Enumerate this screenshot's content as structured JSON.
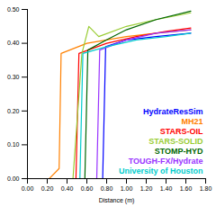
{
  "chart_data": {
    "type": "line",
    "x_label": "Distance (m)",
    "xlim": [
      0,
      1.8
    ],
    "ylim": [
      0,
      0.5
    ],
    "xticks": [
      {
        "value": 0,
        "label": "0.00"
      },
      {
        "value": 0.2,
        "label": "0.20"
      },
      {
        "value": 0.4,
        "label": "0.40"
      },
      {
        "value": 0.6,
        "label": "0.60"
      },
      {
        "value": 0.8,
        "label": "0.80"
      },
      {
        "value": 1.0,
        "label": "1.00"
      },
      {
        "value": 1.2,
        "label": "1.20"
      },
      {
        "value": 1.4,
        "label": "1.40"
      },
      {
        "value": 1.6,
        "label": "1.60"
      },
      {
        "value": 1.8,
        "label": "1.80"
      }
    ],
    "yticks": [
      {
        "value": 0,
        "label": "0.00"
      },
      {
        "value": 0.1,
        "label": "0.10"
      },
      {
        "value": 0.2,
        "label": "0.20"
      },
      {
        "value": 0.3,
        "label": "0.30"
      },
      {
        "value": 0.4,
        "label": "0.40"
      },
      {
        "value": 0.5,
        "label": "0.50"
      }
    ],
    "grid": false,
    "legend": "lower right",
    "series": [
      {
        "name": "HydrateResSim",
        "color": "#0000ff",
        "x": [
          0,
          0.76,
          0.79,
          1.0,
          1.3,
          1.65
        ],
        "values": [
          0,
          0,
          0.39,
          0.41,
          0.42,
          0.43
        ]
      },
      {
        "name": "MH21",
        "color": "#ff8000",
        "x": [
          0,
          0.22,
          0.32,
          0.34,
          0.6,
          1.0,
          1.3,
          1.65
        ],
        "values": [
          0,
          0,
          0.03,
          0.37,
          0.4,
          0.42,
          0.43,
          0.44
        ]
      },
      {
        "name": "STARS-OIL",
        "color": "#ff0000",
        "x": [
          0,
          0.49,
          0.52,
          0.8,
          1.1,
          1.4,
          1.65
        ],
        "values": [
          0,
          0,
          0.37,
          0.4,
          0.42,
          0.435,
          0.445
        ]
      },
      {
        "name": "STARS-SOLID",
        "color": "#99cc33",
        "x": [
          0,
          0.46,
          0.55,
          0.62,
          0.72,
          1.0,
          1.3,
          1.65
        ],
        "values": [
          0,
          0,
          0.37,
          0.45,
          0.42,
          0.45,
          0.47,
          0.49
        ]
      },
      {
        "name": "STOMP-HYD",
        "color": "#006600",
        "x": [
          0,
          0.58,
          0.61,
          0.8,
          1.0,
          1.3,
          1.65
        ],
        "values": [
          0,
          0,
          0.38,
          0.41,
          0.44,
          0.47,
          0.495
        ]
      },
      {
        "name": "TOUGH-FX/Hydrate",
        "color": "#9933ff",
        "x": [
          0,
          0.7,
          0.73,
          1.0,
          1.3,
          1.65
        ],
        "values": [
          0,
          0,
          0.38,
          0.41,
          0.43,
          0.44
        ]
      },
      {
        "name": "University of Houston",
        "color": "#00cccc",
        "x": [
          0,
          0.53,
          0.56,
          0.8,
          1.1,
          1.4,
          1.65
        ],
        "values": [
          0,
          0,
          0.37,
          0.39,
          0.41,
          0.42,
          0.43
        ]
      }
    ]
  }
}
